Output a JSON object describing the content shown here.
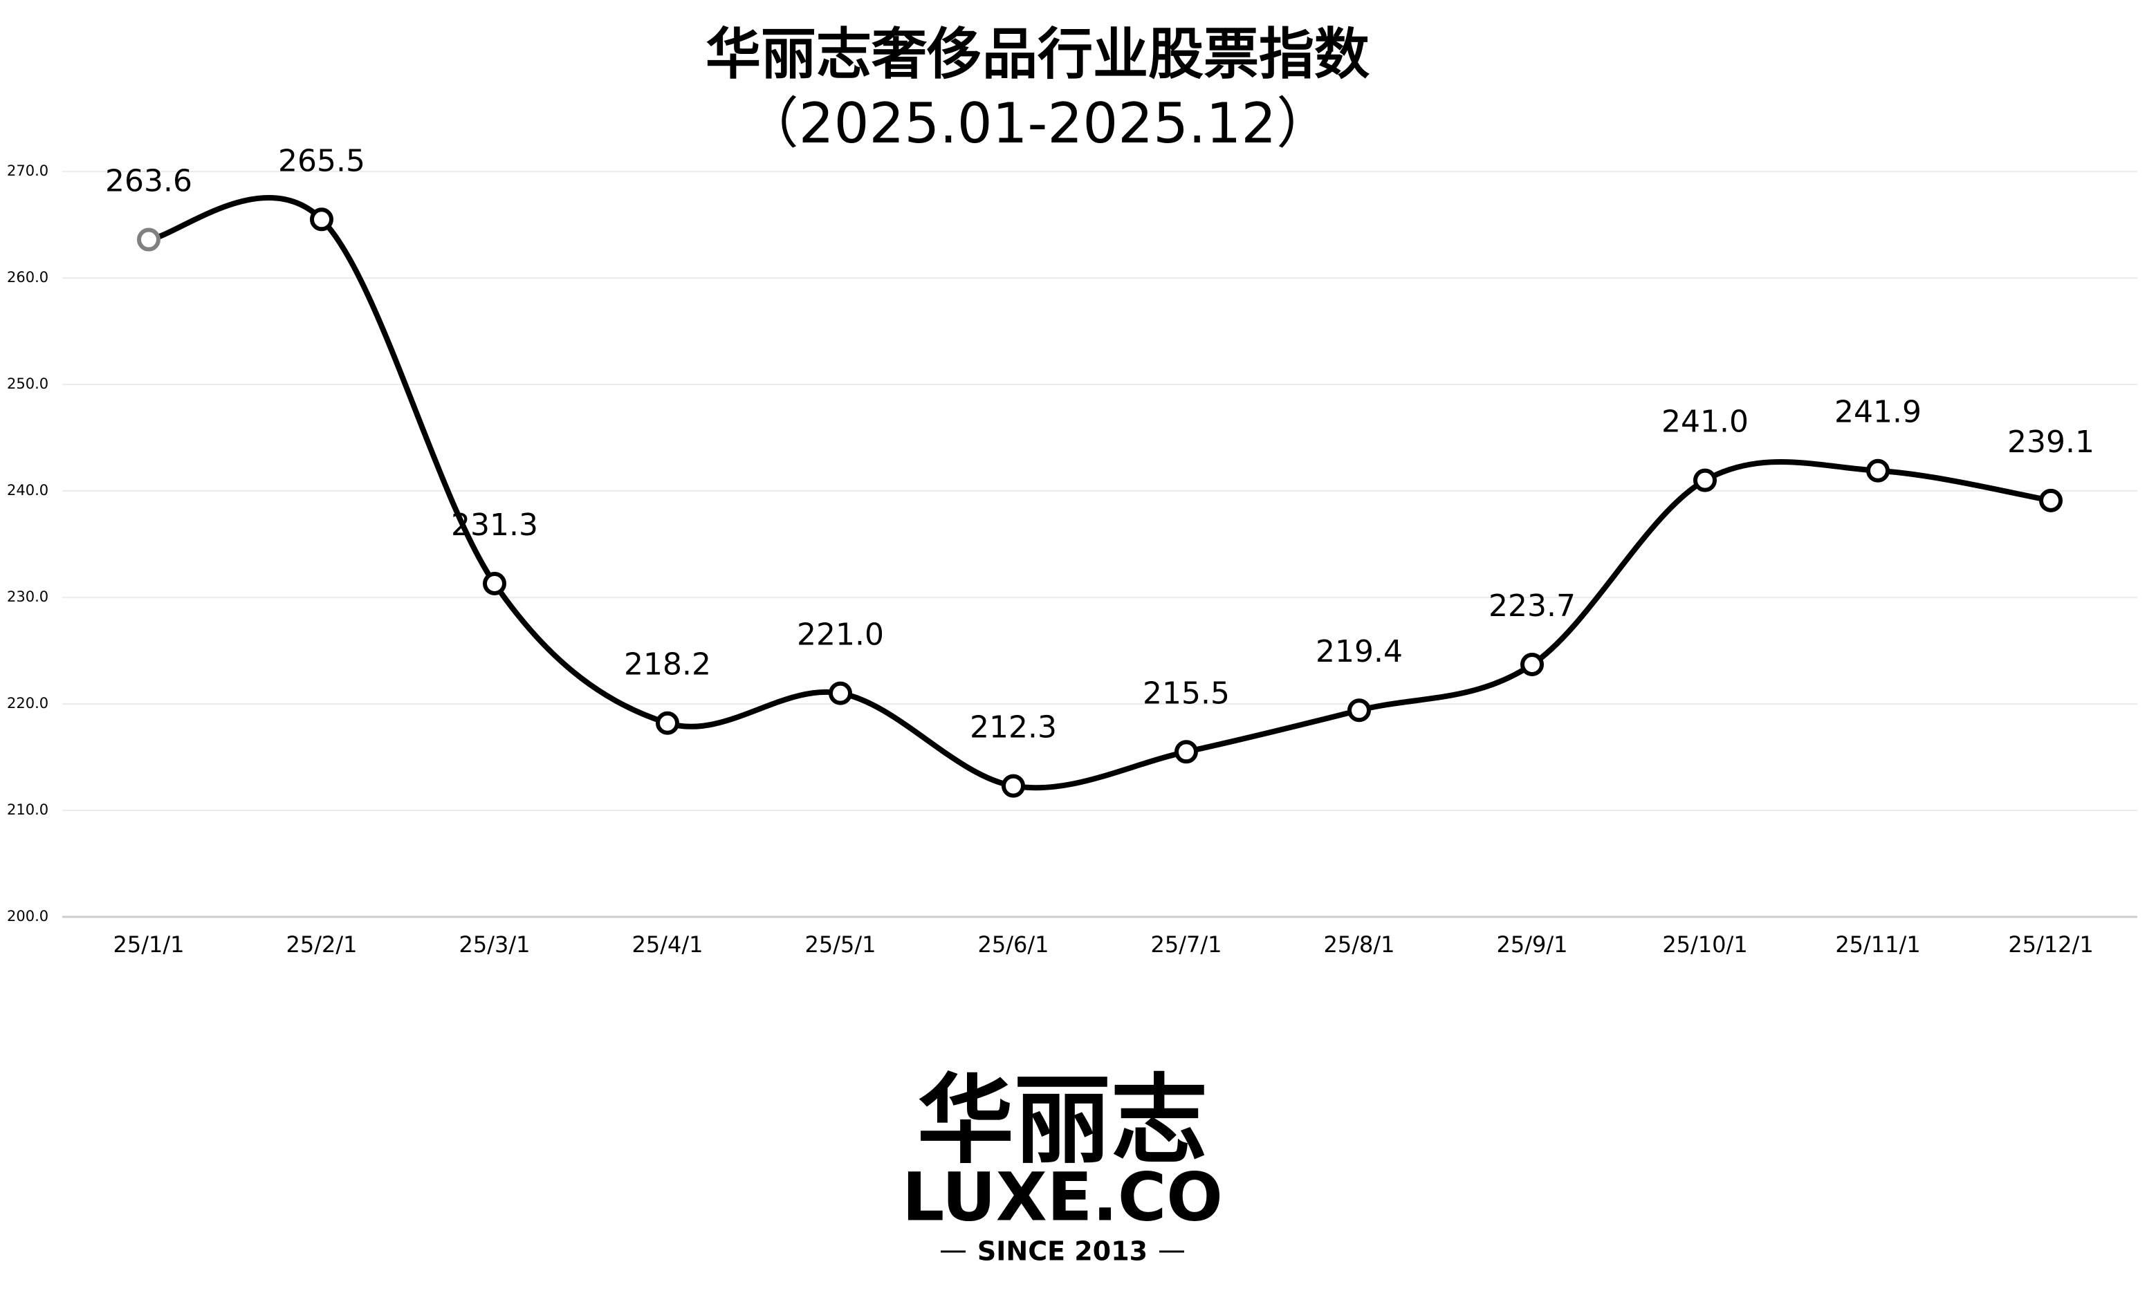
{
  "chart_data": {
    "type": "line",
    "title": [
      "华丽志奢侈品行业股票指数",
      "（2025.01-2025.12）"
    ],
    "categories": [
      "25/1/1",
      "25/2/1",
      "25/3/1",
      "25/4/1",
      "25/5/1",
      "25/6/1",
      "25/7/1",
      "25/8/1",
      "25/9/1",
      "25/10/1",
      "25/11/1",
      "25/12/1"
    ],
    "series": [
      {
        "name": "华丽志奢侈品行业股票指数",
        "color": "#000000",
        "values": [
          263.6,
          265.5,
          231.3,
          218.2,
          221.0,
          212.3,
          215.5,
          219.4,
          223.7,
          241.0,
          241.9,
          239.1
        ],
        "value_labels": [
          "263.6",
          "265.5",
          "231.3",
          "218.2",
          "221.0",
          "212.3",
          "215.5",
          "219.4",
          "223.7",
          "241.0",
          "241.9",
          "239.1"
        ]
      }
    ],
    "start_marker_color": "#808080",
    "smooth": true,
    "ylim": [
      200,
      270
    ],
    "yticks": [
      {
        "value": 200,
        "label": "200.0"
      },
      {
        "value": 210,
        "label": "210.0"
      },
      {
        "value": 220,
        "label": "220.0"
      },
      {
        "value": 230,
        "label": "230.0"
      },
      {
        "value": 240,
        "label": "240.0"
      },
      {
        "value": 250,
        "label": "250.0"
      },
      {
        "value": 260,
        "label": "260.0"
      },
      {
        "value": 270,
        "label": "270.0"
      }
    ],
    "grid": true
  },
  "logo": {
    "name": "华丽志",
    "brand": "LUXE.CO",
    "tagline": "SINCE 2013"
  }
}
